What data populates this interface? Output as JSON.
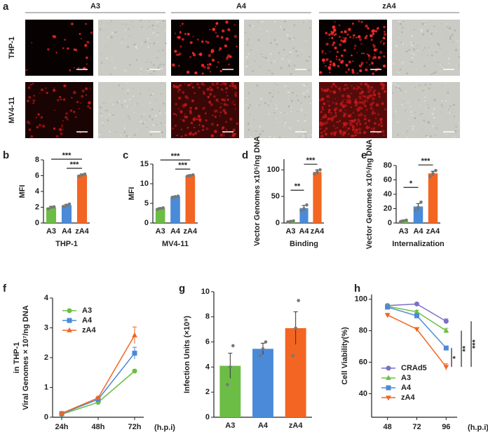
{
  "panel_a": {
    "label": "a",
    "columns": [
      "A3",
      "A4",
      "zA4"
    ],
    "rows": [
      "THP-1",
      "MV4-11"
    ]
  },
  "chart_data": [
    {
      "panel": "b",
      "type": "bar",
      "ylabel": "MFI",
      "xlabel": "THP-1",
      "categories": [
        "A3",
        "A4",
        "zA4"
      ],
      "values": [
        1.95,
        2.25,
        6.1
      ],
      "errors": [
        0.15,
        0.12,
        0.12
      ],
      "points": [
        [
          1.8,
          2.0,
          2.05
        ],
        [
          2.1,
          2.25,
          2.4
        ],
        [
          5.95,
          6.1,
          6.2
        ]
      ],
      "colors": [
        "#6cbd45",
        "#4a8ad8",
        "#f26522"
      ],
      "ylim": [
        0,
        8
      ],
      "yticks": [
        0,
        2,
        4,
        6,
        8
      ],
      "significance": [
        {
          "pair": [
            "A3",
            "zA4"
          ],
          "label": "***"
        },
        {
          "pair": [
            "A4",
            "zA4"
          ],
          "label": "***"
        }
      ]
    },
    {
      "panel": "c",
      "type": "bar",
      "ylabel": "MFI",
      "xlabel": "MV4-11",
      "categories": [
        "A3",
        "A4",
        "zA4"
      ],
      "values": [
        3.7,
        6.7,
        12.1
      ],
      "errors": [
        0.2,
        0.15,
        0.2
      ],
      "points": [
        [
          3.5,
          3.7,
          3.85
        ],
        [
          6.55,
          6.7,
          6.85
        ],
        [
          11.9,
          12.1,
          12.25
        ]
      ],
      "colors": [
        "#6cbd45",
        "#4a8ad8",
        "#f26522"
      ],
      "ylim": [
        0,
        15
      ],
      "yticks": [
        0,
        5,
        10,
        15
      ],
      "significance": [
        {
          "pair": [
            "A3",
            "zA4"
          ],
          "label": "***"
        },
        {
          "pair": [
            "A4",
            "zA4"
          ],
          "label": "***"
        }
      ]
    },
    {
      "panel": "d",
      "type": "bar",
      "ylabel": "Vector Genomes x10⁵/ng DNA",
      "xlabel": "Binding",
      "categories": [
        "A3",
        "A4",
        "zA4"
      ],
      "values": [
        3,
        28,
        96
      ],
      "errors": [
        1,
        5,
        4
      ],
      "points": [
        [
          2,
          3,
          4
        ],
        [
          23,
          27,
          34
        ],
        [
          92,
          96,
          100
        ]
      ],
      "colors": [
        "#6cbd45",
        "#4a8ad8",
        "#f26522"
      ],
      "ylim": [
        0,
        120
      ],
      "yticks": [
        0,
        50,
        100
      ],
      "significance": [
        {
          "pair": [
            "A3",
            "A4"
          ],
          "label": "**"
        },
        {
          "pair": [
            "A4",
            "zA4"
          ],
          "label": "***"
        }
      ]
    },
    {
      "panel": "e",
      "type": "bar",
      "ylabel": "Vector Genomes x10⁵/ng DNA",
      "xlabel": "Internalization",
      "categories": [
        "A3",
        "A4",
        "zA4"
      ],
      "values": [
        3,
        23,
        69
      ],
      "errors": [
        1,
        4,
        3
      ],
      "points": [
        [
          2,
          3,
          4
        ],
        [
          18,
          22,
          29
        ],
        [
          65,
          69,
          73
        ]
      ],
      "colors": [
        "#6cbd45",
        "#4a8ad8",
        "#f26522"
      ],
      "ylim": [
        0,
        80
      ],
      "yticks": [
        0,
        20,
        40,
        60,
        80
      ],
      "significance": [
        {
          "pair": [
            "A3",
            "A4"
          ],
          "label": "*"
        },
        {
          "pair": [
            "A4",
            "zA4"
          ],
          "label": "***"
        }
      ]
    },
    {
      "panel": "f",
      "type": "line",
      "ylabel": [
        "Viral Genomes × 10⁷/ng DNA",
        "in THP-1"
      ],
      "x_unit": "(h.p.i)",
      "categories": [
        "24h",
        "48h",
        "72h"
      ],
      "legend": "upper left",
      "series": [
        {
          "name": "A3",
          "color": "#6cbd45",
          "marker": "circle",
          "values": [
            0.1,
            0.5,
            1.55
          ],
          "errors": [
            0.02,
            0.03,
            0.05
          ]
        },
        {
          "name": "A4",
          "color": "#4a8ad8",
          "marker": "square",
          "values": [
            0.12,
            0.6,
            2.15
          ],
          "errors": [
            0.02,
            0.05,
            0.2
          ]
        },
        {
          "name": "zA4",
          "color": "#f26522",
          "marker": "triangle-up",
          "values": [
            0.13,
            0.65,
            2.75
          ],
          "errors": [
            0.02,
            0.05,
            0.28
          ]
        }
      ],
      "ylim": [
        0,
        4
      ],
      "yticks": [
        0,
        1,
        2,
        3,
        4
      ]
    },
    {
      "panel": "g",
      "type": "bar",
      "ylabel": "Infection Units (×10⁹)",
      "categories": [
        "A3",
        "A4",
        "zA4"
      ],
      "values": [
        4.1,
        5.45,
        7.1
      ],
      "errors": [
        1.0,
        0.45,
        1.3
      ],
      "points": [
        [
          2.6,
          4.0,
          5.7
        ],
        [
          4.9,
          5.45,
          6.0
        ],
        [
          4.9,
          7.1,
          9.3
        ]
      ],
      "colors": [
        "#6cbd45",
        "#4a8ad8",
        "#f26522"
      ],
      "ylim": [
        0,
        10
      ],
      "yticks": [
        0,
        2,
        4,
        6,
        8,
        10
      ]
    },
    {
      "panel": "h",
      "type": "line",
      "ylabel": "Cell Viability(%)",
      "x_unit": "(h.p.i)",
      "x": [
        48,
        72,
        96
      ],
      "xlim": [
        35,
        105
      ],
      "xticks": [
        48,
        72,
        96
      ],
      "legend": "lower left",
      "series": [
        {
          "name": "CRAd5",
          "color": "#7b6fc4",
          "marker": "circle",
          "values": [
            96,
            97,
            86
          ],
          "errors": [
            1,
            0.5,
            1.5
          ]
        },
        {
          "name": "A3",
          "color": "#6cbd45",
          "marker": "triangle-up",
          "values": [
            95.5,
            92,
            80
          ],
          "errors": [
            1,
            1,
            1.5
          ]
        },
        {
          "name": "A4",
          "color": "#4a8ad8",
          "marker": "square",
          "values": [
            95,
            89.5,
            69
          ],
          "errors": [
            1,
            1,
            1
          ]
        },
        {
          "name": "zA4",
          "color": "#f26522",
          "marker": "triangle-down",
          "values": [
            90,
            81,
            57
          ],
          "errors": [
            1,
            1,
            2
          ]
        }
      ],
      "ylim": [
        25,
        103
      ],
      "yticks": [
        40,
        60,
        80,
        100
      ],
      "significance": [
        {
          "pair": [
            "A4",
            "zA4"
          ],
          "label": "*"
        },
        {
          "pair": [
            "A3",
            "zA4"
          ],
          "label": "**"
        },
        {
          "pair": [
            "CRAd5",
            "zA4"
          ],
          "label": "***"
        }
      ]
    }
  ]
}
